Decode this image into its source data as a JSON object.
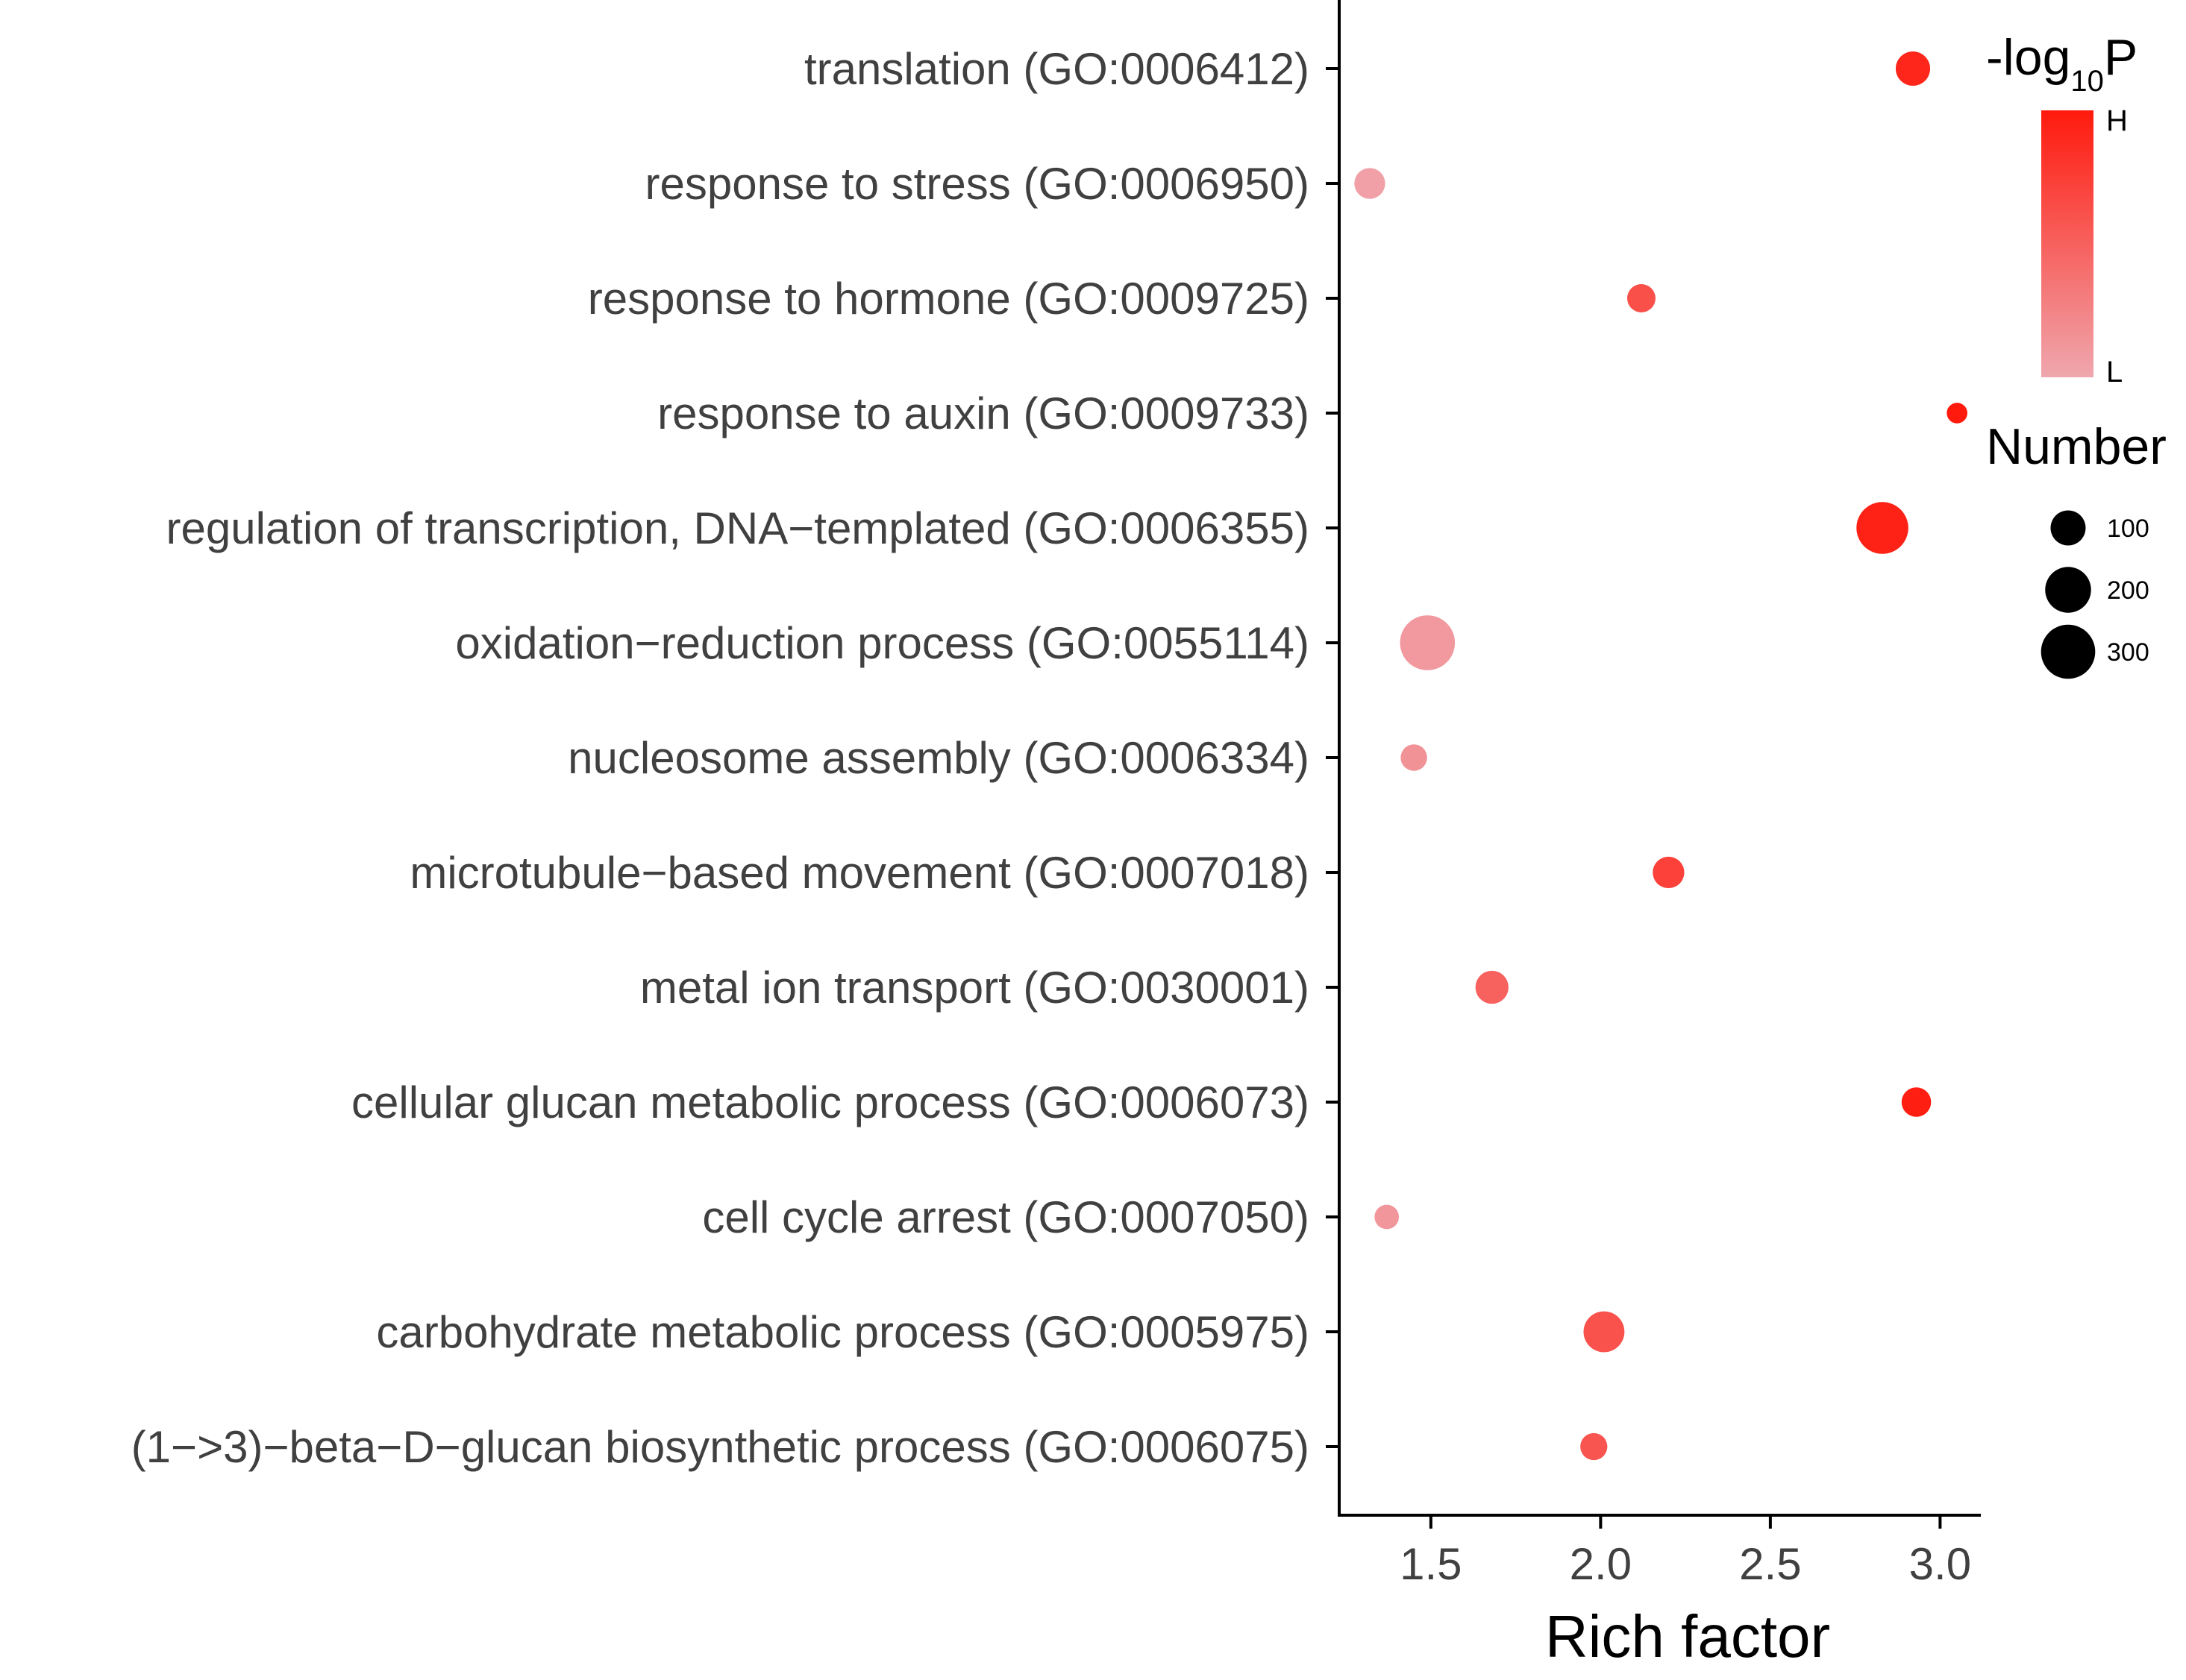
{
  "chart_data": {
    "type": "scatter",
    "xlabel": "Rich factor",
    "ylabel": "",
    "xlim": [
      1.23,
      3.12
    ],
    "xticks": [
      "1.5",
      "2.0",
      "2.5",
      "3.0"
    ],
    "xtick_values": [
      1.5,
      2.0,
      2.5,
      3.0
    ],
    "grid": false,
    "categories": [
      "translation (GO:0006412)",
      "response to stress (GO:0006950)",
      "response to hormone (GO:0009725)",
      "response to auxin (GO:0009733)",
      "regulation of transcription, DNA−templated (GO:0006355)",
      "oxidation−reduction process (GO:0055114)",
      "nucleosome assembly (GO:0006334)",
      "microtubule−based movement (GO:0007018)",
      "metal ion transport (GO:0030001)",
      "cellular glucan metabolic process (GO:0006073)",
      "cell cycle arrest (GO:0007050)",
      "carbohydrate metabolic process (GO:0005975)",
      "(1−>3)−beta−D−glucan biosynthetic process (GO:0006075)"
    ],
    "points": [
      {
        "rich_factor": 2.92,
        "number": 95,
        "neglog10p": 0.92
      },
      {
        "rich_factor": 1.32,
        "number": 70,
        "neglog10p": 0.05
      },
      {
        "rich_factor": 2.12,
        "number": 55,
        "neglog10p": 0.62
      },
      {
        "rich_factor": 3.05,
        "number": 20,
        "neglog10p": 1.0
      },
      {
        "rich_factor": 2.83,
        "number": 270,
        "neglog10p": 0.95
      },
      {
        "rich_factor": 1.49,
        "number": 310,
        "neglog10p": 0.1
      },
      {
        "rich_factor": 1.45,
        "number": 45,
        "neglog10p": 0.15
      },
      {
        "rich_factor": 2.2,
        "number": 75,
        "neglog10p": 0.72
      },
      {
        "rich_factor": 1.68,
        "number": 85,
        "neglog10p": 0.5
      },
      {
        "rich_factor": 2.93,
        "number": 62,
        "neglog10p": 0.97
      },
      {
        "rich_factor": 1.37,
        "number": 35,
        "neglog10p": 0.12
      },
      {
        "rich_factor": 2.01,
        "number": 150,
        "neglog10p": 0.6
      },
      {
        "rich_factor": 1.98,
        "number": 48,
        "neglog10p": 0.58
      }
    ],
    "color_legend": {
      "title_main": "-log",
      "title_sub": "10",
      "title_end": "P",
      "high_label": "H",
      "low_label": "L",
      "low_color": "#efa7ae",
      "high_color": "#ff1a0d"
    },
    "size_legend": {
      "title": "Number",
      "entries": [
        {
          "value": 100,
          "label": "100"
        },
        {
          "value": 200,
          "label": "200"
        },
        {
          "value": 300,
          "label": "300"
        }
      ]
    },
    "legend_position": "right"
  }
}
